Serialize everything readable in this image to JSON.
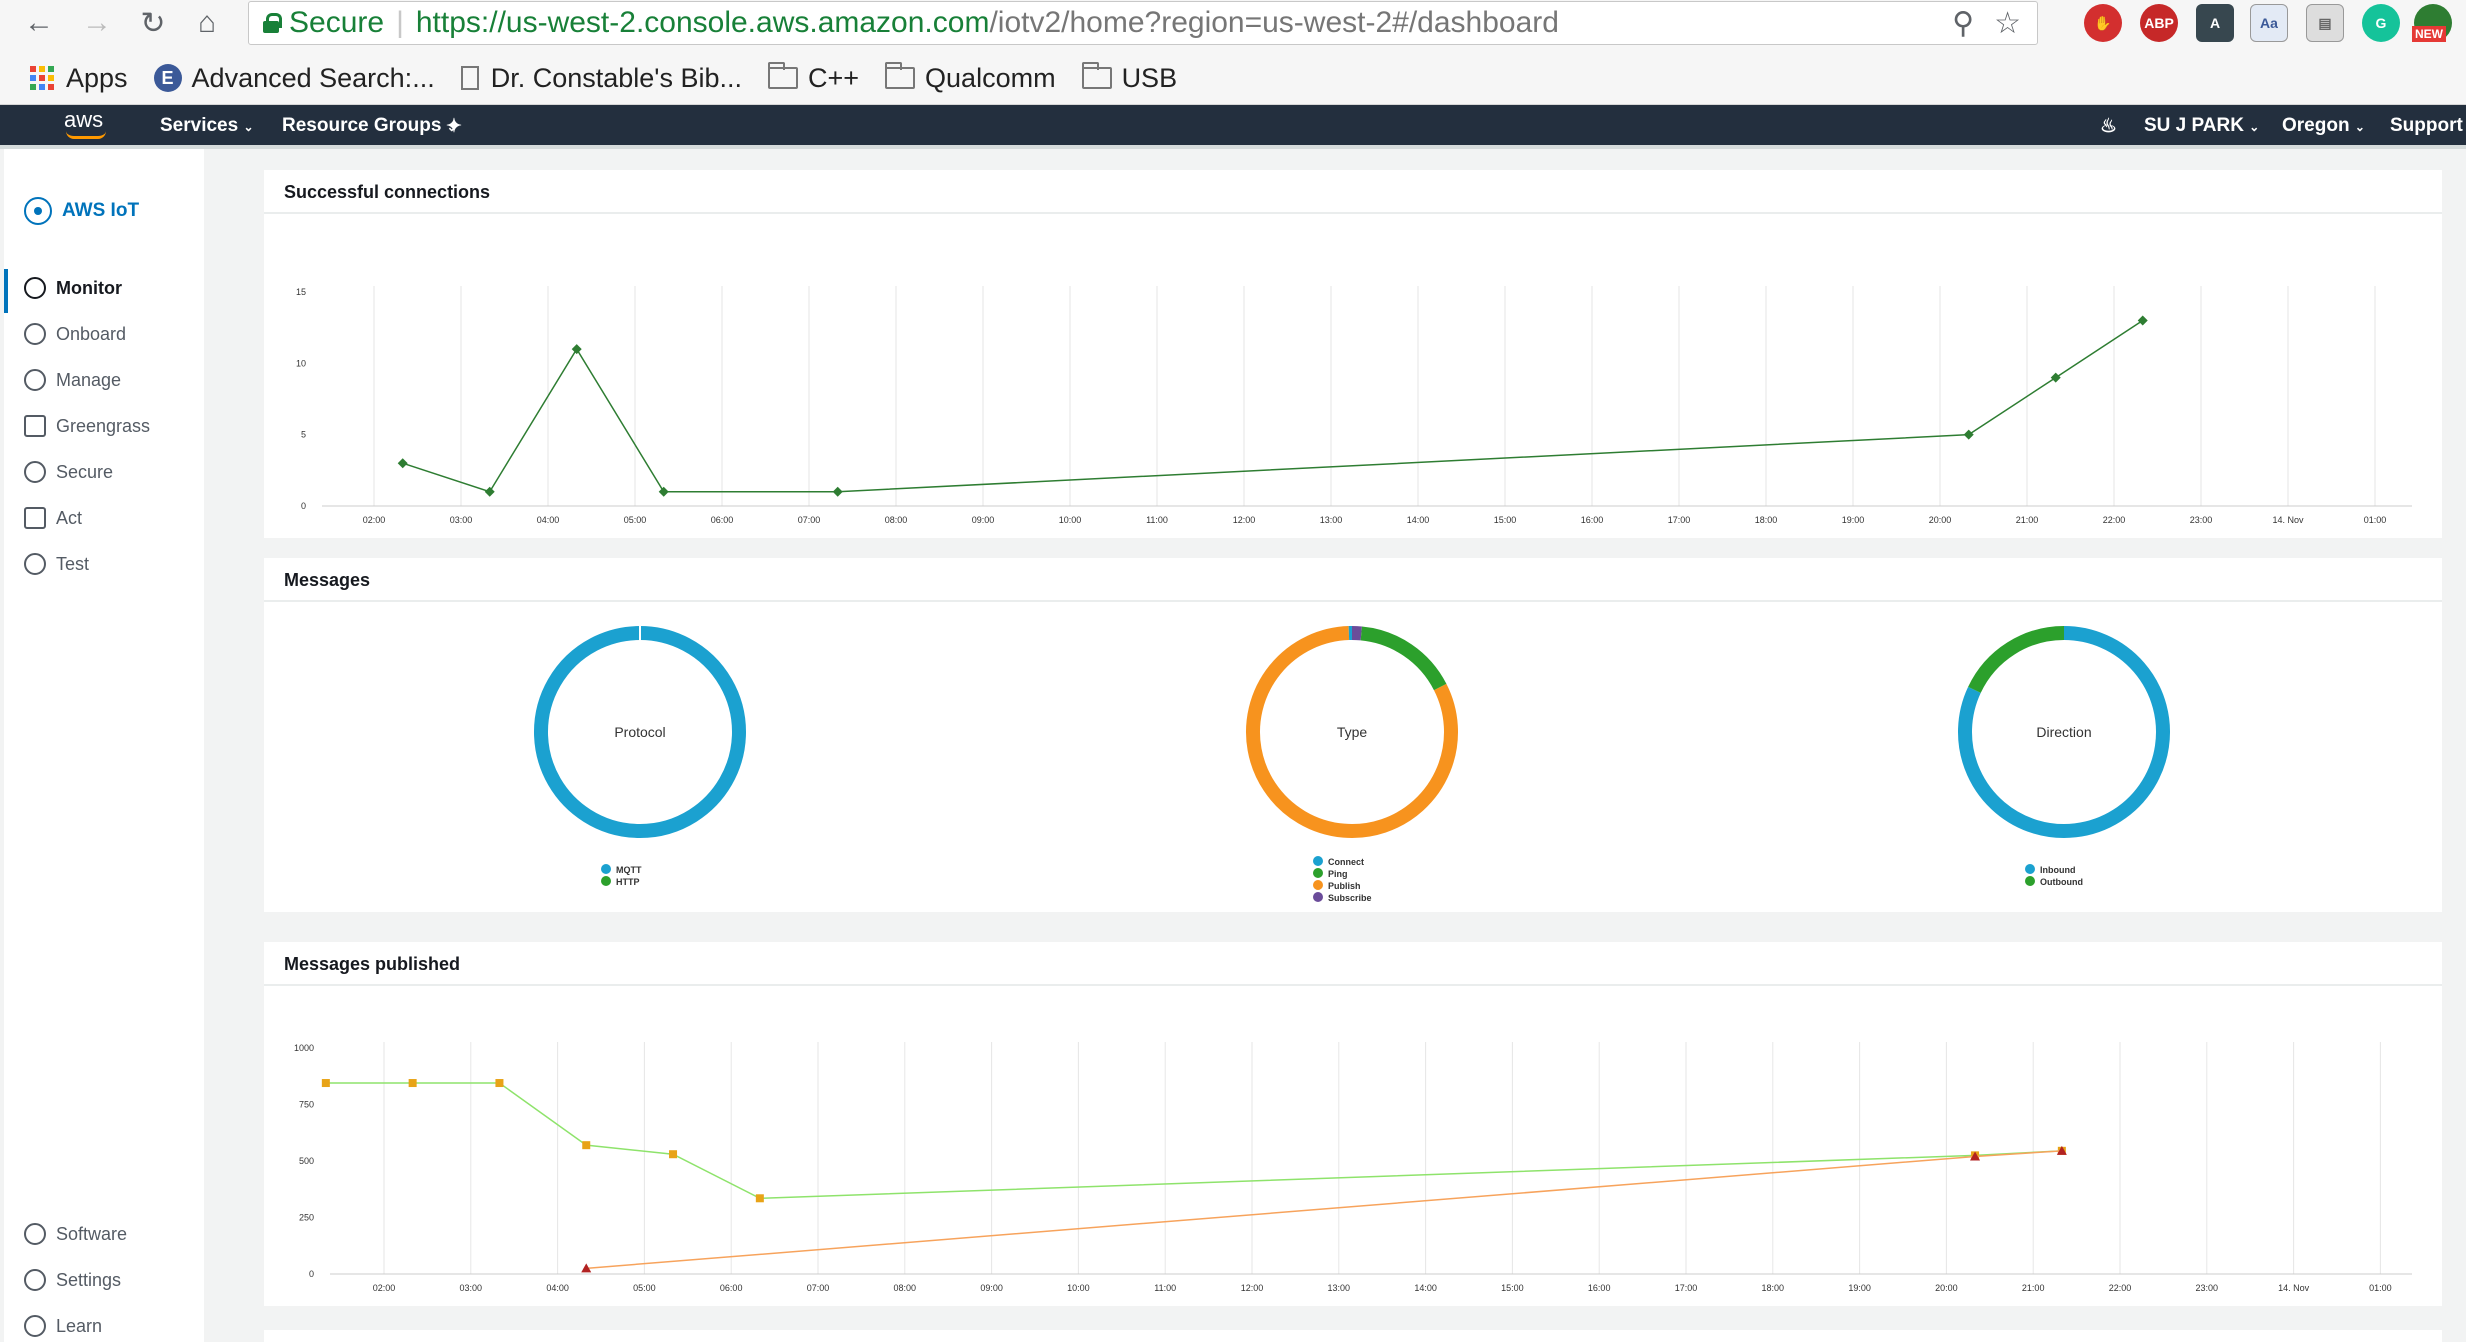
{
  "browser": {
    "secure_label": "Secure",
    "url_main": "https://us-west-2.console.aws.amazon.com",
    "url_rest": "/iotv2/home?region=us-west-2#/dashboard",
    "bookmarks": [
      {
        "label": "Apps"
      },
      {
        "label": "Advanced Search:..."
      },
      {
        "label": "Dr. Constable's Bib..."
      },
      {
        "label": "C++"
      },
      {
        "label": "Qualcomm"
      },
      {
        "label": "USB"
      }
    ],
    "ext_abp": "ABP",
    "ext_new": "NEW"
  },
  "awsnav": {
    "logo": "aws",
    "services": "Services",
    "resource_groups": "Resource Groups",
    "user": "SU J PARK",
    "region": "Oregon",
    "support": "Support"
  },
  "sidebar": {
    "brand": "AWS IoT",
    "items": [
      {
        "label": "Monitor",
        "icon": "monitor-icon"
      },
      {
        "label": "Onboard",
        "icon": "cloud-upload-icon"
      },
      {
        "label": "Manage",
        "icon": "manage-icon"
      },
      {
        "label": "Greengrass",
        "icon": "greengrass-icon"
      },
      {
        "label": "Secure",
        "icon": "lock-icon"
      },
      {
        "label": "Act",
        "icon": "act-icon"
      },
      {
        "label": "Test",
        "icon": "test-icon"
      }
    ],
    "bottom_items": [
      {
        "label": "Software",
        "icon": "download-icon"
      },
      {
        "label": "Settings",
        "icon": "gear-icon"
      },
      {
        "label": "Learn",
        "icon": "info-icon"
      }
    ]
  },
  "panels": {
    "connections_title": "Successful connections",
    "messages_title": "Messages",
    "published_title": "Messages published"
  },
  "chart_data": [
    {
      "type": "line",
      "title": "Successful connections",
      "x_ticks": [
        "02:00",
        "03:00",
        "04:00",
        "05:00",
        "06:00",
        "07:00",
        "08:00",
        "09:00",
        "10:00",
        "11:00",
        "12:00",
        "13:00",
        "14:00",
        "15:00",
        "16:00",
        "17:00",
        "18:00",
        "19:00",
        "20:00",
        "21:00",
        "22:00",
        "23:00",
        "14. Nov",
        "01:00"
      ],
      "y_ticks": [
        0,
        5,
        10,
        15
      ],
      "ylim": [
        0,
        15
      ],
      "legend": [
        "Successful connections"
      ],
      "series": [
        {
          "name": "Successful connections",
          "color": "#2e7d32",
          "x": [
            2.33,
            3.33,
            4.33,
            5.33,
            7.33,
            20.33,
            21.33,
            22.33
          ],
          "values": [
            3,
            1,
            11,
            1,
            1,
            5,
            9,
            13
          ]
        }
      ]
    },
    {
      "type": "pie",
      "title": "Protocol",
      "legend": [
        "MQTT",
        "HTTP"
      ],
      "colors": [
        "#1ba1d0",
        "#2ca02c"
      ],
      "values": [
        100,
        0
      ]
    },
    {
      "type": "pie",
      "title": "Type",
      "legend": [
        "Connect",
        "Ping",
        "Publish",
        "Subscribe"
      ],
      "colors": [
        "#1ba1d0",
        "#2ca02c",
        "#f7931e",
        "#6b4c9a"
      ],
      "values": [
        0.5,
        16,
        82,
        1.5
      ]
    },
    {
      "type": "pie",
      "title": "Direction",
      "legend": [
        "Inbound",
        "Outbound"
      ],
      "colors": [
        "#1ba1d0",
        "#2ca02c"
      ],
      "values": [
        82,
        18
      ]
    },
    {
      "type": "line",
      "title": "Messages published",
      "x_ticks": [
        "02:00",
        "03:00",
        "04:00",
        "05:00",
        "06:00",
        "07:00",
        "08:00",
        "09:00",
        "10:00",
        "11:00",
        "12:00",
        "13:00",
        "14:00",
        "15:00",
        "16:00",
        "17:00",
        "18:00",
        "19:00",
        "20:00",
        "21:00",
        "22:00",
        "23:00",
        "14. Nov",
        "01:00"
      ],
      "y_ticks": [
        0,
        250,
        500,
        750,
        1000
      ],
      "ylim": [
        0,
        1000
      ],
      "legend": [
        "Inbound",
        "Outbound"
      ],
      "series": [
        {
          "name": "Inbound",
          "color": "#8ee36b",
          "marker_color": "#e8a317",
          "x": [
            1.33,
            2.33,
            3.33,
            4.33,
            5.33,
            6.33,
            20.33,
            21.33
          ],
          "values": [
            845,
            845,
            845,
            570,
            530,
            335,
            525,
            545
          ]
        },
        {
          "name": "Outbound",
          "color": "#f7a35c",
          "marker_color": "#b22222",
          "x": [
            4.33,
            20.33,
            21.33
          ],
          "values": [
            25,
            520,
            545
          ]
        }
      ]
    }
  ]
}
